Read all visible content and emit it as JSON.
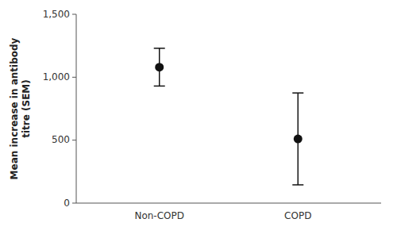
{
  "chart_data": {
    "type": "errorbar",
    "categories": [
      "Non-COPD",
      "COPD"
    ],
    "values": [
      1080,
      510
    ],
    "error_lower": [
      150,
      365
    ],
    "error_upper": [
      150,
      365
    ],
    "color": "#111111",
    "ylabel": "Mean increase in antibody\ntitre (SEM)",
    "ylim": [
      0,
      1500
    ],
    "yticks": [
      0,
      500,
      {
        "value": 1000,
        "label": "1,000"
      },
      {
        "value": 1500,
        "label": "1,500"
      }
    ],
    "grid": false
  }
}
